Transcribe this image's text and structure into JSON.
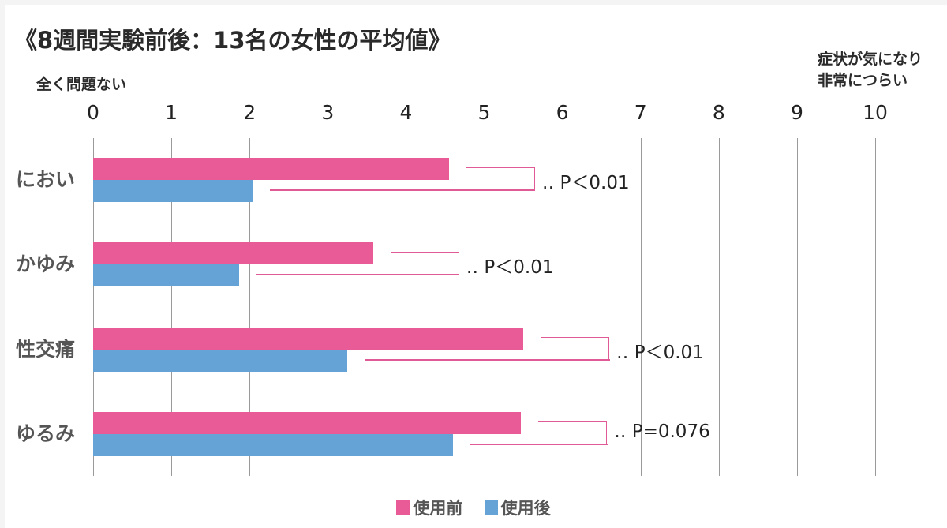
{
  "chart_data": {
    "type": "bar",
    "orientation": "horizontal",
    "title": "《8週間実験前後：13名の女性の平均値》",
    "xlabel_left": "全く問題ない",
    "xlabel_right": [
      "症状が気になり",
      "非常につらい"
    ],
    "xlim": [
      0,
      10
    ],
    "xticks": [
      "0",
      "1",
      "2",
      "3",
      "4",
      "5",
      "6",
      "7",
      "8",
      "9",
      "10"
    ],
    "grid": true,
    "categories": [
      "におい",
      "かゆみ",
      "性交痛",
      "ゆるみ"
    ],
    "series": [
      {
        "name": "使用前",
        "color": "#e95b96",
        "values": [
          4.55,
          3.58,
          5.5,
          5.47
        ]
      },
      {
        "name": "使用後",
        "color": "#65a2d5",
        "values": [
          2.04,
          1.87,
          3.25,
          4.6
        ]
      }
    ],
    "annotations": [
      "‥ P＜0.01",
      "‥ P＜0.01",
      "‥ P＜0.01",
      "‥ P=0.076"
    ],
    "legend": {
      "position": "bottom",
      "entries": [
        "使用前",
        "使用後"
      ]
    }
  },
  "title": "《8週間実験前後：13名の女性の平均値》",
  "axis": {
    "left_label": "全く問題ない",
    "right_label_1": "症状が気になり",
    "right_label_2": "非常につらい",
    "ticks": [
      "0",
      "1",
      "2",
      "3",
      "4",
      "5",
      "6",
      "7",
      "8",
      "9",
      "10"
    ]
  },
  "rows": [
    {
      "label": "におい",
      "p": "‥ P＜0.01"
    },
    {
      "label": "かゆみ",
      "p": "‥ P＜0.01"
    },
    {
      "label": "性交痛",
      "p": "‥ P＜0.01"
    },
    {
      "label": "ゆるみ",
      "p": "‥ P=0.076"
    }
  ],
  "legend": {
    "before": "使用前",
    "after": "使用後"
  }
}
